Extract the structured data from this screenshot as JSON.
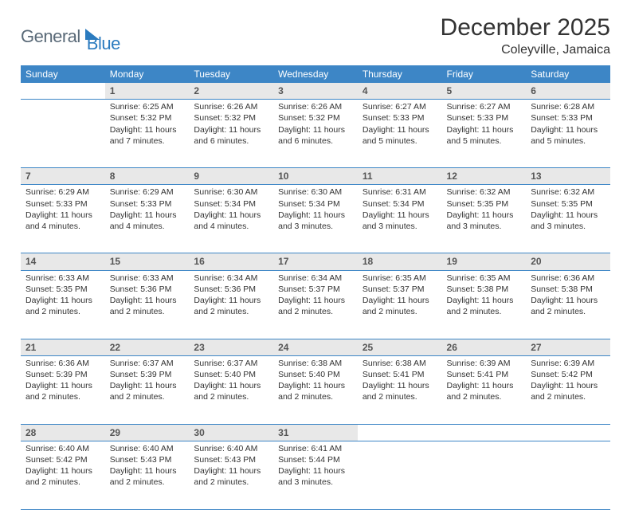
{
  "logo": {
    "general": "General",
    "blue": "Blue"
  },
  "title": "December 2025",
  "location": "Coleyville, Jamaica",
  "colors": {
    "header_bg": "#3d86c6",
    "header_fg": "#ffffff",
    "daynum_bg": "#e8e8e8",
    "border": "#3d86c6",
    "logo_gray": "#5a6a78",
    "logo_blue": "#2b7bbf"
  },
  "weekdays": [
    "Sunday",
    "Monday",
    "Tuesday",
    "Wednesday",
    "Thursday",
    "Friday",
    "Saturday"
  ],
  "weeks": [
    [
      {
        "n": "",
        "sr": "",
        "ss": "",
        "dl": ""
      },
      {
        "n": "1",
        "sr": "Sunrise: 6:25 AM",
        "ss": "Sunset: 5:32 PM",
        "dl": "Daylight: 11 hours and 7 minutes."
      },
      {
        "n": "2",
        "sr": "Sunrise: 6:26 AM",
        "ss": "Sunset: 5:32 PM",
        "dl": "Daylight: 11 hours and 6 minutes."
      },
      {
        "n": "3",
        "sr": "Sunrise: 6:26 AM",
        "ss": "Sunset: 5:32 PM",
        "dl": "Daylight: 11 hours and 6 minutes."
      },
      {
        "n": "4",
        "sr": "Sunrise: 6:27 AM",
        "ss": "Sunset: 5:33 PM",
        "dl": "Daylight: 11 hours and 5 minutes."
      },
      {
        "n": "5",
        "sr": "Sunrise: 6:27 AM",
        "ss": "Sunset: 5:33 PM",
        "dl": "Daylight: 11 hours and 5 minutes."
      },
      {
        "n": "6",
        "sr": "Sunrise: 6:28 AM",
        "ss": "Sunset: 5:33 PM",
        "dl": "Daylight: 11 hours and 5 minutes."
      }
    ],
    [
      {
        "n": "7",
        "sr": "Sunrise: 6:29 AM",
        "ss": "Sunset: 5:33 PM",
        "dl": "Daylight: 11 hours and 4 minutes."
      },
      {
        "n": "8",
        "sr": "Sunrise: 6:29 AM",
        "ss": "Sunset: 5:33 PM",
        "dl": "Daylight: 11 hours and 4 minutes."
      },
      {
        "n": "9",
        "sr": "Sunrise: 6:30 AM",
        "ss": "Sunset: 5:34 PM",
        "dl": "Daylight: 11 hours and 4 minutes."
      },
      {
        "n": "10",
        "sr": "Sunrise: 6:30 AM",
        "ss": "Sunset: 5:34 PM",
        "dl": "Daylight: 11 hours and 3 minutes."
      },
      {
        "n": "11",
        "sr": "Sunrise: 6:31 AM",
        "ss": "Sunset: 5:34 PM",
        "dl": "Daylight: 11 hours and 3 minutes."
      },
      {
        "n": "12",
        "sr": "Sunrise: 6:32 AM",
        "ss": "Sunset: 5:35 PM",
        "dl": "Daylight: 11 hours and 3 minutes."
      },
      {
        "n": "13",
        "sr": "Sunrise: 6:32 AM",
        "ss": "Sunset: 5:35 PM",
        "dl": "Daylight: 11 hours and 3 minutes."
      }
    ],
    [
      {
        "n": "14",
        "sr": "Sunrise: 6:33 AM",
        "ss": "Sunset: 5:35 PM",
        "dl": "Daylight: 11 hours and 2 minutes."
      },
      {
        "n": "15",
        "sr": "Sunrise: 6:33 AM",
        "ss": "Sunset: 5:36 PM",
        "dl": "Daylight: 11 hours and 2 minutes."
      },
      {
        "n": "16",
        "sr": "Sunrise: 6:34 AM",
        "ss": "Sunset: 5:36 PM",
        "dl": "Daylight: 11 hours and 2 minutes."
      },
      {
        "n": "17",
        "sr": "Sunrise: 6:34 AM",
        "ss": "Sunset: 5:37 PM",
        "dl": "Daylight: 11 hours and 2 minutes."
      },
      {
        "n": "18",
        "sr": "Sunrise: 6:35 AM",
        "ss": "Sunset: 5:37 PM",
        "dl": "Daylight: 11 hours and 2 minutes."
      },
      {
        "n": "19",
        "sr": "Sunrise: 6:35 AM",
        "ss": "Sunset: 5:38 PM",
        "dl": "Daylight: 11 hours and 2 minutes."
      },
      {
        "n": "20",
        "sr": "Sunrise: 6:36 AM",
        "ss": "Sunset: 5:38 PM",
        "dl": "Daylight: 11 hours and 2 minutes."
      }
    ],
    [
      {
        "n": "21",
        "sr": "Sunrise: 6:36 AM",
        "ss": "Sunset: 5:39 PM",
        "dl": "Daylight: 11 hours and 2 minutes."
      },
      {
        "n": "22",
        "sr": "Sunrise: 6:37 AM",
        "ss": "Sunset: 5:39 PM",
        "dl": "Daylight: 11 hours and 2 minutes."
      },
      {
        "n": "23",
        "sr": "Sunrise: 6:37 AM",
        "ss": "Sunset: 5:40 PM",
        "dl": "Daylight: 11 hours and 2 minutes."
      },
      {
        "n": "24",
        "sr": "Sunrise: 6:38 AM",
        "ss": "Sunset: 5:40 PM",
        "dl": "Daylight: 11 hours and 2 minutes."
      },
      {
        "n": "25",
        "sr": "Sunrise: 6:38 AM",
        "ss": "Sunset: 5:41 PM",
        "dl": "Daylight: 11 hours and 2 minutes."
      },
      {
        "n": "26",
        "sr": "Sunrise: 6:39 AM",
        "ss": "Sunset: 5:41 PM",
        "dl": "Daylight: 11 hours and 2 minutes."
      },
      {
        "n": "27",
        "sr": "Sunrise: 6:39 AM",
        "ss": "Sunset: 5:42 PM",
        "dl": "Daylight: 11 hours and 2 minutes."
      }
    ],
    [
      {
        "n": "28",
        "sr": "Sunrise: 6:40 AM",
        "ss": "Sunset: 5:42 PM",
        "dl": "Daylight: 11 hours and 2 minutes."
      },
      {
        "n": "29",
        "sr": "Sunrise: 6:40 AM",
        "ss": "Sunset: 5:43 PM",
        "dl": "Daylight: 11 hours and 2 minutes."
      },
      {
        "n": "30",
        "sr": "Sunrise: 6:40 AM",
        "ss": "Sunset: 5:43 PM",
        "dl": "Daylight: 11 hours and 2 minutes."
      },
      {
        "n": "31",
        "sr": "Sunrise: 6:41 AM",
        "ss": "Sunset: 5:44 PM",
        "dl": "Daylight: 11 hours and 3 minutes."
      },
      {
        "n": "",
        "sr": "",
        "ss": "",
        "dl": ""
      },
      {
        "n": "",
        "sr": "",
        "ss": "",
        "dl": ""
      },
      {
        "n": "",
        "sr": "",
        "ss": "",
        "dl": ""
      }
    ]
  ]
}
